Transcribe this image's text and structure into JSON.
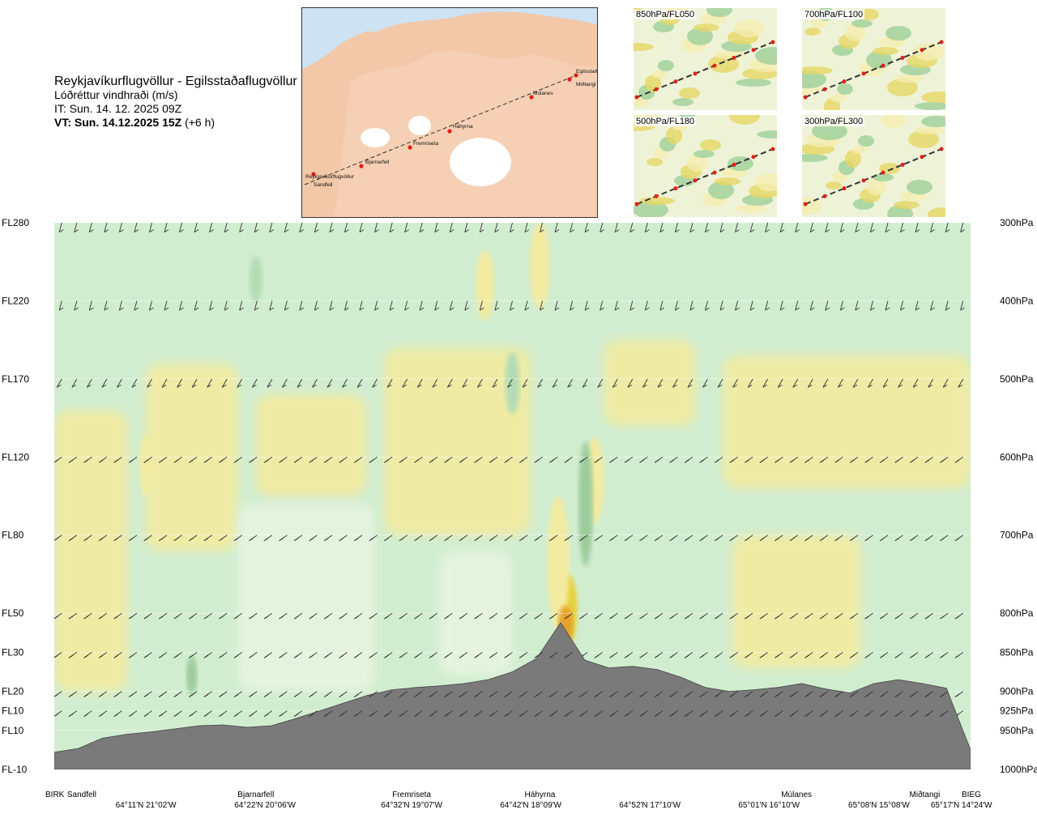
{
  "header": {
    "route": "Reykjavíkurflugvöllur - Egilsstaðaflugvöllur",
    "variable": "Lóðréttur vindhraði (m/s)",
    "it": "IT: Sun. 14. 12. 2025 09Z",
    "vt_bold": "VT: Sun. 14.12.2025 15Z",
    "vt_rest": " (+6 h)"
  },
  "map": {
    "places": [
      "Reykjavíkurflugvöllur",
      "Sandfell",
      "Bjarnarfell",
      "Fremriseta",
      "Háhyrna",
      "Múlanes",
      "Miðtangi",
      "Egilsstaðir"
    ]
  },
  "minimaps": [
    {
      "label": "850hPa/FL050"
    },
    {
      "label": "700hPa/FL100"
    },
    {
      "label": "500hPa/FL180"
    },
    {
      "label": "300hPa/FL300"
    }
  ],
  "chart_data": {
    "type": "heatmap",
    "title": "Reykjavíkurflugvöllur - Egilsstaðaflugvöllur",
    "subtitle": "Lóðréttur vindhraði (m/s)",
    "y_left_ticks": [
      "FL280",
      "FL220",
      "FL170",
      "FL120",
      "FL80",
      "FL50",
      "FL30",
      "FL20",
      "FL10",
      "FL10",
      "FL-10"
    ],
    "y_right_ticks": [
      "300hPa",
      "400hPa",
      "500hPa",
      "600hPa",
      "700hPa",
      "800hPa",
      "850hPa",
      "900hPa",
      "925hPa",
      "950hPa",
      "1000hPa"
    ],
    "pressure_levels_hpa": [
      300,
      400,
      500,
      600,
      700,
      800,
      850,
      900,
      925,
      950,
      1000
    ],
    "x_places": [
      "BIRK",
      "Sandfell",
      "Bjarnarfell",
      "Fremriseta",
      "Háhyrna",
      "Múlanes",
      "Miðtangi",
      "BIEG"
    ],
    "x_coords": [
      "64°11'N 21°02'W",
      "64°22'N 20°06'W",
      "64°32'N 19°07'W",
      "64°42'N 18°09'W",
      "64°52'N 17°10'W",
      "65°01'N 16°10'W",
      "65°08'N 15°08'W",
      "65°17'N 14°24'W"
    ],
    "route_fraction_places": [
      0.0,
      0.03,
      0.22,
      0.39,
      0.53,
      0.81,
      0.95,
      1.0
    ],
    "route_fraction_coords": [
      0.1,
      0.23,
      0.39,
      0.52,
      0.65,
      0.78,
      0.9,
      0.99
    ],
    "terrain_pressure_hpa": [
      978,
      973,
      960,
      955,
      952,
      948,
      944,
      943,
      946,
      944,
      935,
      925,
      915,
      905,
      898,
      895,
      893,
      890,
      885,
      875,
      858,
      812,
      860,
      870,
      868,
      872,
      882,
      895,
      900,
      898,
      895,
      890,
      897,
      902,
      890,
      885,
      890,
      896,
      975
    ],
    "barb_levels_hpa": [
      300,
      400,
      500,
      600,
      700,
      800,
      850,
      900,
      925
    ],
    "wind_zones": [
      {
        "center_fraction": 0.56,
        "center_hpa": 795,
        "value": "strong_up",
        "width": 0.011,
        "height_hpa": 90
      },
      {
        "center_fraction": 0.55,
        "center_hpa": 735,
        "value": "up",
        "width": 0.012,
        "height_hpa": 170
      },
      {
        "center_fraction": 0.59,
        "center_hpa": 630,
        "value": "up",
        "width": 0.01,
        "height_hpa": 110
      },
      {
        "center_fraction": 0.58,
        "center_hpa": 660,
        "value": "strong_down",
        "width": 0.008,
        "height_hpa": 160
      },
      {
        "center_fraction": 0.1,
        "center_hpa": 610,
        "value": "up",
        "width": 0.007,
        "height_hpa": 80
      },
      {
        "center_fraction": 0.15,
        "center_hpa": 880,
        "value": "strong_down",
        "width": 0.006,
        "height_hpa": 50
      },
      {
        "center_fraction": 0.5,
        "center_hpa": 505,
        "value": "down",
        "width": 0.008,
        "height_hpa": 80
      },
      {
        "center_fraction": 0.22,
        "center_hpa": 372,
        "value": "down",
        "width": 0.007,
        "height_hpa": 60
      },
      {
        "center_fraction": 0.53,
        "center_hpa": 355,
        "value": "up",
        "width": 0.011,
        "height_hpa": 110
      },
      {
        "center_fraction": 0.47,
        "center_hpa": 380,
        "value": "up",
        "width": 0.01,
        "height_hpa": 90
      }
    ],
    "legend": {
      "up_color": "#f3eba0",
      "strong_up_color": "#e8d23a",
      "very_strong_up_color": "#e5a22b",
      "down_color": "#c8e8c8",
      "strong_down_color": "#9ccc9c",
      "background": "#d1edd0"
    }
  }
}
